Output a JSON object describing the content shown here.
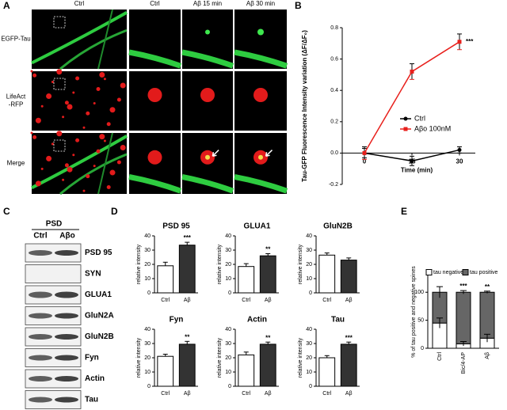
{
  "figure": {
    "panel_labels": [
      "A",
      "B",
      "C",
      "D",
      "E"
    ]
  },
  "panel_a": {
    "column_labels": [
      "Ctrl",
      "Ctrl",
      "Aβ 15 min",
      "Aβ 30 min"
    ],
    "row_labels": [
      [
        "EGFP-Tau"
      ],
      [
        "LifeAct",
        "-RFP"
      ],
      [
        "Merge"
      ]
    ]
  },
  "panel_c": {
    "header": "PSD",
    "lanes": [
      "Ctrl",
      "Aβo"
    ],
    "proteins": [
      "PSD 95",
      "SYN",
      "GLUA1",
      "GluN2A",
      "GluN2B",
      "Fyn",
      "Actin",
      "Tau"
    ]
  },
  "chart_data": [
    {
      "type": "line",
      "xlabel": "Time (min)",
      "ylabel": "Tau-GFP Fluorescence Intensity variation (ΔF/ΔF₀)",
      "x": [
        0,
        15,
        30
      ],
      "xlim": [
        -7,
        35
      ],
      "xticks": [
        0,
        15,
        30
      ],
      "ylim": [
        -0.2,
        0.8
      ],
      "yticks": [
        -0.2,
        {
          "value": 0,
          "label": "0.0"
        },
        0.2,
        0.4,
        0.6,
        0.8
      ],
      "series": [
        {
          "name": "Ctrl",
          "color": "#000000",
          "values": [
            0,
            -0.05,
            0.02
          ],
          "errors": [
            0.03,
            0.03,
            0.02
          ]
        },
        {
          "name": "Aβo 100nM",
          "color": "#e8201c",
          "values": [
            0,
            0.52,
            0.71
          ],
          "errors": [
            0.04,
            0.05,
            0.05
          ],
          "annotations": [
            null,
            null,
            "***"
          ]
        }
      ],
      "legend": "right"
    },
    {
      "type": "bar",
      "title": "PSD 95",
      "ylabel": "relative intensity",
      "categories": [
        "Ctrl",
        "Aβ"
      ],
      "values": [
        19,
        33.5
      ],
      "errors": [
        2.5,
        2
      ],
      "colors": [
        "#ffffff",
        "#333333"
      ],
      "ylim": [
        0,
        40
      ],
      "yticks": [
        0,
        10,
        20,
        30,
        40
      ],
      "annotation": "***"
    },
    {
      "type": "bar",
      "title": "GLUA1",
      "ylabel": "relative intensity",
      "categories": [
        "Ctrl",
        "Aβ"
      ],
      "values": [
        18.5,
        26
      ],
      "errors": [
        2,
        1.5
      ],
      "colors": [
        "#ffffff",
        "#333333"
      ],
      "ylim": [
        0,
        40
      ],
      "yticks": [
        0,
        10,
        20,
        30,
        40
      ],
      "annotation": "**"
    },
    {
      "type": "bar",
      "title": "GluN2B",
      "ylabel": "relative intensity",
      "categories": [
        "Ctrl",
        "Aβ"
      ],
      "values": [
        26.5,
        23
      ],
      "errors": [
        1.5,
        1.5
      ],
      "colors": [
        "#ffffff",
        "#333333"
      ],
      "ylim": [
        0,
        40
      ],
      "yticks": [
        0,
        10,
        20,
        30,
        40
      ]
    },
    {
      "type": "bar",
      "title": "Fyn",
      "ylabel": "relative intensity",
      "categories": [
        "Ctrl",
        "Aβ"
      ],
      "values": [
        21,
        29.5
      ],
      "errors": [
        1.5,
        2
      ],
      "colors": [
        "#ffffff",
        "#333333"
      ],
      "ylim": [
        0,
        40
      ],
      "yticks": [
        0,
        10,
        20,
        30,
        40
      ],
      "annotation": "**"
    },
    {
      "type": "bar",
      "title": "Actin",
      "ylabel": "relative intensity",
      "categories": [
        "Ctrl",
        "Aβ"
      ],
      "values": [
        22,
        29.5
      ],
      "errors": [
        2,
        1.5
      ],
      "colors": [
        "#ffffff",
        "#333333"
      ],
      "ylim": [
        0,
        40
      ],
      "yticks": [
        0,
        10,
        20,
        30,
        40
      ],
      "annotation": "**"
    },
    {
      "type": "bar",
      "title": "Tau",
      "ylabel": "relative intensity",
      "categories": [
        "Ctrl",
        "Aβ"
      ],
      "values": [
        20,
        29.5
      ],
      "errors": [
        1.5,
        1.5
      ],
      "colors": [
        "#ffffff",
        "#333333"
      ],
      "ylim": [
        0,
        40
      ],
      "yticks": [
        0,
        10,
        20,
        30,
        40
      ],
      "annotation": "***"
    },
    {
      "type": "stacked_bar",
      "ylabel": "% of tau positive and negative spines",
      "categories": [
        "Ctrl",
        "Bic/4-AP",
        "Aβ"
      ],
      "series": [
        {
          "name": "tau negative",
          "color": "#ffffff",
          "values": [
            45,
            8,
            18
          ],
          "errors": [
            9,
            4,
            7
          ]
        },
        {
          "name": "tau positive",
          "color": "#666666",
          "values": [
            55,
            92,
            82
          ],
          "errors": [
            10,
            3,
            2
          ]
        }
      ],
      "ylim": [
        0,
        130
      ],
      "yticks": [
        0,
        50,
        100
      ],
      "annotations": [
        null,
        "***",
        "**"
      ],
      "legend": "top"
    }
  ]
}
